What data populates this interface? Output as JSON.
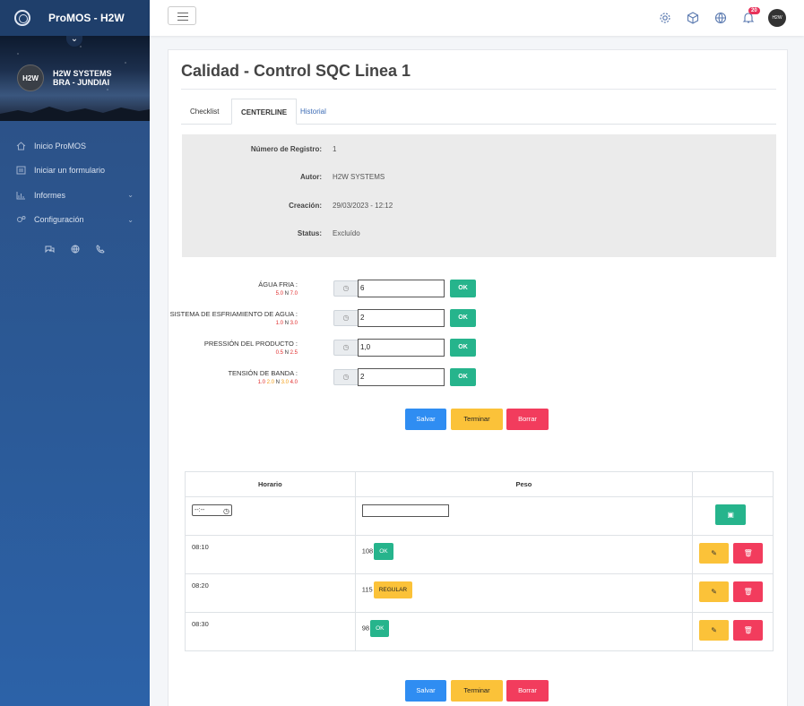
{
  "app": {
    "brand": "ProMOS - H2W"
  },
  "profile": {
    "company": "H2W SYSTEMS",
    "site": "BRA - JUNDIAI",
    "avatar_text": "H2W"
  },
  "sidebar": {
    "items": [
      {
        "label": "Inicio ProMOS",
        "icon": "home-icon"
      },
      {
        "label": "Iniciar un formulario",
        "icon": "form-icon"
      },
      {
        "label": "Informes",
        "icon": "chart-icon",
        "has_caret": true
      },
      {
        "label": "Configuración",
        "icon": "gears-icon",
        "has_caret": true
      }
    ]
  },
  "topbar": {
    "notification_count": "20",
    "avatar_text": "H2W"
  },
  "page": {
    "title": "Calidad - Control SQC Linea 1",
    "tabs": [
      {
        "label": "Checklist"
      },
      {
        "label": "CENTERLINE"
      },
      {
        "label": "Historial"
      }
    ]
  },
  "info": {
    "registro_label": "Número de Registro:",
    "registro_value": "1",
    "autor_label": "Autor:",
    "autor_value": "H2W SYSTEMS",
    "creacion_label": "Creación:",
    "creacion_value": "29/03/2023 - 12:12",
    "status_label": "Status:",
    "status_value": "Excluído"
  },
  "fields": [
    {
      "label": "ÁGUA FRIA :",
      "min": "5.0",
      "n": "N",
      "max": "7.0",
      "value": "6",
      "ok": "OK"
    },
    {
      "label": "SISTEMA DE ESFRIAMIENTO DE AGUA :",
      "min": "1.0",
      "n": "N",
      "max": "3.0",
      "value": "2",
      "ok": "OK"
    },
    {
      "label": "PRESSIÓN DEL PRODUCTO :",
      "min": "0.5",
      "n": "N",
      "max": "2.5",
      "value": "1,0",
      "ok": "OK"
    },
    {
      "label": "TENSIÓN DE BANDA :",
      "r1": "1.0",
      "r2": "2.0",
      "n": "N",
      "r3": "3.0",
      "r4": "4.0",
      "value": "2",
      "ok": "OK"
    }
  ],
  "buttons": {
    "save": "Salvar",
    "finish": "Terminar",
    "delete": "Borrar"
  },
  "table": {
    "headers": {
      "horario": "Horario",
      "peso": "Peso"
    },
    "time_placeholder": "--:--",
    "rows": [
      {
        "time": "08:10",
        "peso": "108",
        "status": "OK"
      },
      {
        "time": "08:20",
        "peso": "115",
        "status": "REGULAR"
      },
      {
        "time": "08:30",
        "peso": "98",
        "status": "OK"
      }
    ]
  },
  "colors": {
    "ok": "#26b48c",
    "warn": "#fbc239",
    "danger": "#f23c5d",
    "primary": "#2f8df2"
  }
}
